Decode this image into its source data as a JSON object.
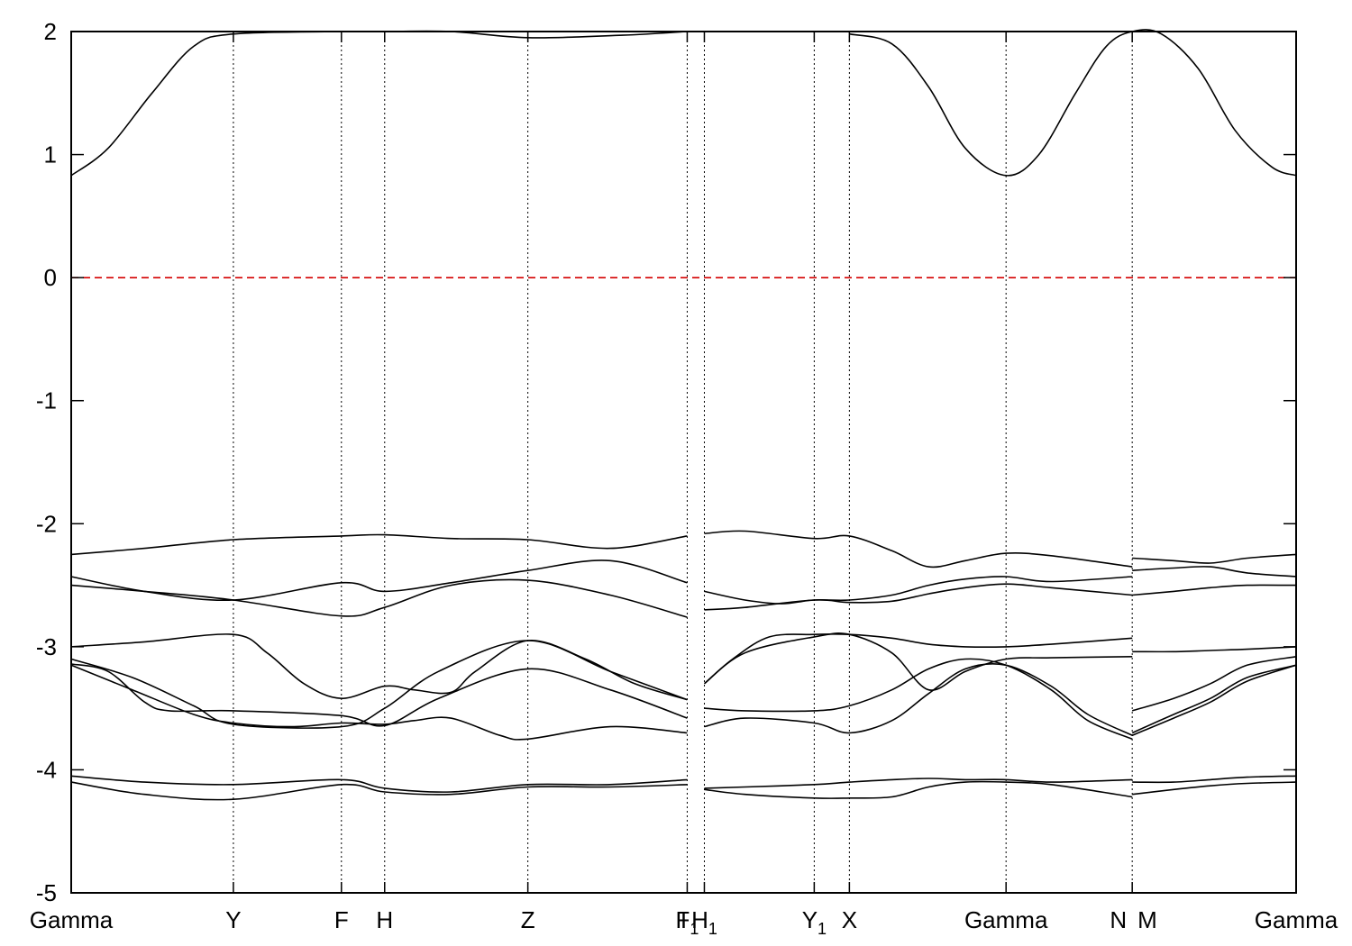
{
  "chart_data": {
    "type": "line",
    "title": "",
    "xlabel": "",
    "ylabel": "",
    "ylim": [
      -5,
      2
    ],
    "yticks": [
      2,
      1,
      0,
      -1,
      -2,
      -3,
      -4,
      -5
    ],
    "ytick_labels": [
      "2",
      "1",
      "0",
      "-1",
      "-2",
      "-3",
      "-4",
      "-5"
    ],
    "xlim": [
      0,
      100
    ],
    "grid": "vertical dotted lines at high-symmetry points",
    "fermi_level": {
      "y": 0,
      "color": "#d40000",
      "style": "dashed"
    },
    "kpoints": [
      {
        "x": 0.0,
        "label": "Gamma",
        "sub": ""
      },
      {
        "x": 13.24,
        "label": "Y",
        "sub": ""
      },
      {
        "x": 22.06,
        "label": "F",
        "sub": ""
      },
      {
        "x": 25.59,
        "label": "H",
        "sub": ""
      },
      {
        "x": 37.28,
        "label": "Z",
        "sub": ""
      },
      {
        "x": 50.29,
        "label": "I",
        "sub": ""
      },
      {
        "x": 50.29,
        "label": "F",
        "sub": "1"
      },
      {
        "x": 51.69,
        "label": "H",
        "sub": "1"
      },
      {
        "x": 60.66,
        "label": "Y",
        "sub": "1"
      },
      {
        "x": 63.53,
        "label": "X",
        "sub": ""
      },
      {
        "x": 76.32,
        "label": "Gamma",
        "sub": ""
      },
      {
        "x": 86.62,
        "label": "N",
        "sub": ""
      },
      {
        "x": 86.62,
        "label": "M",
        "sub": ""
      },
      {
        "x": 100.0,
        "label": "Gamma",
        "sub": ""
      }
    ],
    "series": [
      {
        "x": [
          0,
          3,
          6.6,
          10,
          13.24,
          22.06,
          25.59,
          31,
          37.28,
          45,
          50.29
        ],
        "y": [
          0.83,
          1.05,
          1.5,
          1.88,
          1.98,
          2.0,
          2.0,
          2.0,
          1.95,
          1.97,
          2.0
        ]
      },
      {
        "x": [
          63.53,
          67,
          70,
          73,
          76.32,
          79,
          82,
          84.5,
          86.62,
          89,
          92,
          95,
          98,
          100
        ],
        "y": [
          1.98,
          1.9,
          1.55,
          1.05,
          0.83,
          1.0,
          1.5,
          1.88,
          2.0,
          1.98,
          1.7,
          1.2,
          0.9,
          0.83
        ]
      },
      {
        "x": [
          0,
          6,
          13.24,
          22.06,
          25.59,
          31,
          37.28,
          44,
          50.29
        ],
        "y": [
          -2.25,
          -2.2,
          -2.13,
          -2.1,
          -2.09,
          -2.12,
          -2.13,
          -2.2,
          -2.1
        ]
      },
      {
        "x": [
          51.69,
          55,
          60.66,
          63.53,
          67,
          70,
          73,
          76.32,
          80,
          86.62
        ],
        "y": [
          -2.08,
          -2.06,
          -2.12,
          -2.1,
          -2.22,
          -2.35,
          -2.3,
          -2.24,
          -2.26,
          -2.35
        ]
      },
      {
        "x": [
          86.62,
          90,
          93,
          96,
          100
        ],
        "y": [
          -2.28,
          -2.3,
          -2.32,
          -2.28,
          -2.25
        ]
      },
      {
        "x": [
          0,
          6,
          13.24,
          22.06,
          25.59,
          31,
          37.28,
          44,
          50.29
        ],
        "y": [
          -2.43,
          -2.55,
          -2.62,
          -2.48,
          -2.55,
          -2.48,
          -2.38,
          -2.3,
          -2.48
        ]
      },
      {
        "x": [
          51.69,
          55,
          58,
          60.66,
          63.53,
          67,
          70,
          73,
          76.32,
          80,
          86.62
        ],
        "y": [
          -2.55,
          -2.62,
          -2.65,
          -2.62,
          -2.62,
          -2.58,
          -2.5,
          -2.45,
          -2.43,
          -2.47,
          -2.43
        ]
      },
      {
        "x": [
          86.62,
          90,
          93,
          96,
          100
        ],
        "y": [
          -2.38,
          -2.36,
          -2.35,
          -2.4,
          -2.43
        ]
      },
      {
        "x": [
          0,
          6,
          13.24,
          22.06,
          25.59,
          31,
          37.28,
          44,
          50.29
        ],
        "y": [
          -2.5,
          -2.55,
          -2.62,
          -2.75,
          -2.68,
          -2.5,
          -2.46,
          -2.58,
          -2.76
        ]
      },
      {
        "x": [
          51.69,
          55,
          60.66,
          63.53,
          67,
          70,
          73,
          76.32,
          80,
          86.62
        ],
        "y": [
          -2.7,
          -2.68,
          -2.62,
          -2.64,
          -2.63,
          -2.57,
          -2.52,
          -2.49,
          -2.52,
          -2.58
        ]
      },
      {
        "x": [
          86.62,
          90,
          93,
          96,
          100
        ],
        "y": [
          -2.58,
          -2.55,
          -2.52,
          -2.5,
          -2.5
        ]
      },
      {
        "x": [
          0,
          6,
          13.24,
          16,
          19,
          22.06,
          25.59,
          28,
          31,
          33,
          37.28,
          42,
          46,
          50.29
        ],
        "y": [
          -3.0,
          -2.96,
          -2.9,
          -3.05,
          -3.3,
          -3.42,
          -3.32,
          -3.35,
          -3.37,
          -3.2,
          -2.95,
          -3.1,
          -3.3,
          -3.43
        ]
      },
      {
        "x": [
          51.69,
          54,
          57,
          60.66,
          63.53,
          67,
          70,
          73,
          76.32,
          80,
          86.62
        ],
        "y": [
          -3.3,
          -3.1,
          -2.92,
          -2.9,
          -2.9,
          -2.93,
          -2.98,
          -3.0,
          -3.0,
          -2.98,
          -2.93
        ]
      },
      {
        "x": [
          86.62,
          90,
          93,
          96,
          100
        ],
        "y": [
          -3.04,
          -3.04,
          -3.03,
          -3.02,
          -3.0
        ]
      },
      {
        "x": [
          0,
          5,
          10,
          13.24,
          22.06,
          25.59,
          30,
          37.28,
          44,
          50.29
        ],
        "y": [
          -3.1,
          -3.25,
          -3.48,
          -3.63,
          -3.65,
          -3.5,
          -3.2,
          -2.95,
          -3.2,
          -3.43
        ]
      },
      {
        "x": [
          51.69,
          55,
          60.66,
          63.53,
          67,
          70,
          73,
          76.32,
          80,
          86.62
        ],
        "y": [
          -3.3,
          -3.05,
          -2.92,
          -2.9,
          -3.05,
          -3.35,
          -3.2,
          -3.1,
          -3.09,
          -3.08
        ]
      },
      {
        "x": [
          86.62,
          90,
          93,
          96,
          100
        ],
        "y": [
          -3.52,
          -3.42,
          -3.3,
          -3.15,
          -3.08
        ]
      },
      {
        "x": [
          0,
          3,
          6,
          8,
          13.24,
          22.06,
          25.59,
          30,
          37.28,
          44,
          50.29
        ],
        "y": [
          -3.14,
          -3.2,
          -3.45,
          -3.52,
          -3.52,
          -3.56,
          -3.64,
          -3.42,
          -3.18,
          -3.35,
          -3.58
        ]
      },
      {
        "x": [
          51.69,
          55,
          60.66,
          63.53,
          67,
          70,
          73,
          76.32,
          80,
          83,
          86.62
        ],
        "y": [
          -3.5,
          -3.52,
          -3.52,
          -3.48,
          -3.35,
          -3.18,
          -3.1,
          -3.15,
          -3.35,
          -3.6,
          -3.75
        ]
      },
      {
        "x": [
          86.62,
          90,
          93,
          96,
          100
        ],
        "y": [
          -3.7,
          -3.55,
          -3.42,
          -3.25,
          -3.15
        ]
      },
      {
        "x": [
          0,
          5,
          10,
          13.24,
          18,
          22.06,
          25.59,
          28,
          31,
          35,
          37.28,
          44,
          50.29
        ],
        "y": [
          -3.15,
          -3.35,
          -3.55,
          -3.62,
          -3.65,
          -3.62,
          -3.63,
          -3.6,
          -3.58,
          -3.72,
          -3.75,
          -3.65,
          -3.7
        ]
      },
      {
        "x": [
          51.69,
          55,
          60.66,
          63.53,
          67,
          70,
          73,
          76.32,
          80,
          83,
          86.62
        ],
        "y": [
          -3.65,
          -3.58,
          -3.62,
          -3.7,
          -3.6,
          -3.38,
          -3.18,
          -3.15,
          -3.32,
          -3.55,
          -3.72
        ]
      },
      {
        "x": [
          86.62,
          90,
          93,
          96,
          100
        ],
        "y": [
          -3.72,
          -3.58,
          -3.45,
          -3.28,
          -3.15
        ]
      },
      {
        "x": [
          0,
          6,
          13.24,
          22.06,
          25.59,
          31,
          37.28,
          44,
          50.29
        ],
        "y": [
          -4.05,
          -4.1,
          -4.12,
          -4.08,
          -4.15,
          -4.18,
          -4.12,
          -4.12,
          -4.08
        ]
      },
      {
        "x": [
          51.69,
          55,
          60.66,
          63.53,
          67,
          70,
          73,
          76.32,
          80,
          86.62
        ],
        "y": [
          -4.15,
          -4.14,
          -4.12,
          -4.1,
          -4.08,
          -4.07,
          -4.08,
          -4.08,
          -4.1,
          -4.08
        ]
      },
      {
        "x": [
          86.62,
          90,
          93,
          96,
          100
        ],
        "y": [
          -4.1,
          -4.1,
          -4.08,
          -4.06,
          -4.05
        ]
      },
      {
        "x": [
          0,
          6,
          13.24,
          22.06,
          25.59,
          31,
          37.28,
          44,
          50.29
        ],
        "y": [
          -4.1,
          -4.2,
          -4.24,
          -4.12,
          -4.18,
          -4.2,
          -4.14,
          -4.14,
          -4.12
        ]
      },
      {
        "x": [
          51.69,
          55,
          60.66,
          63.53,
          67,
          70,
          73,
          76.32,
          80,
          86.62
        ],
        "y": [
          -4.16,
          -4.2,
          -4.23,
          -4.23,
          -4.22,
          -4.14,
          -4.1,
          -4.1,
          -4.12,
          -4.22
        ]
      },
      {
        "x": [
          86.62,
          90,
          93,
          96,
          100
        ],
        "y": [
          -4.2,
          -4.16,
          -4.13,
          -4.11,
          -4.1
        ]
      }
    ]
  }
}
